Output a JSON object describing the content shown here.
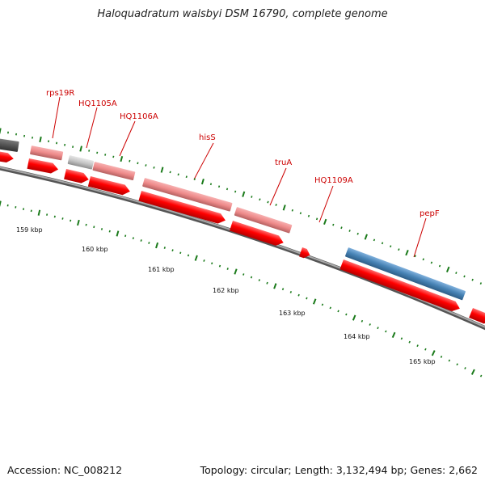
{
  "title": "Haloquadratum walsbyi DSM 16790, complete genome",
  "accession": "Accession: NC_008212",
  "summary": "Topology: circular; Length: 3,132,494 bp; Genes: 2,662",
  "gene_labels": [
    "rps19R",
    "HQ1105A",
    "HQ1106A",
    "hisS",
    "truA",
    "HQ1109A",
    "pepF"
  ],
  "kbp_labels": [
    "159 kbp",
    "160 kbp",
    "161 kbp",
    "162 kbp",
    "163 kbp",
    "164 kbp",
    "165 kbp"
  ],
  "colors": {
    "cds": "#ff0000",
    "gene_pink": "#f08080",
    "gene_blue": "#4682b4",
    "gene_gray": "#c0c0c0",
    "gene_dark": "#555555",
    "backbone": "#808080",
    "ticks": "#1a7a1a",
    "label": "#cc0000"
  }
}
